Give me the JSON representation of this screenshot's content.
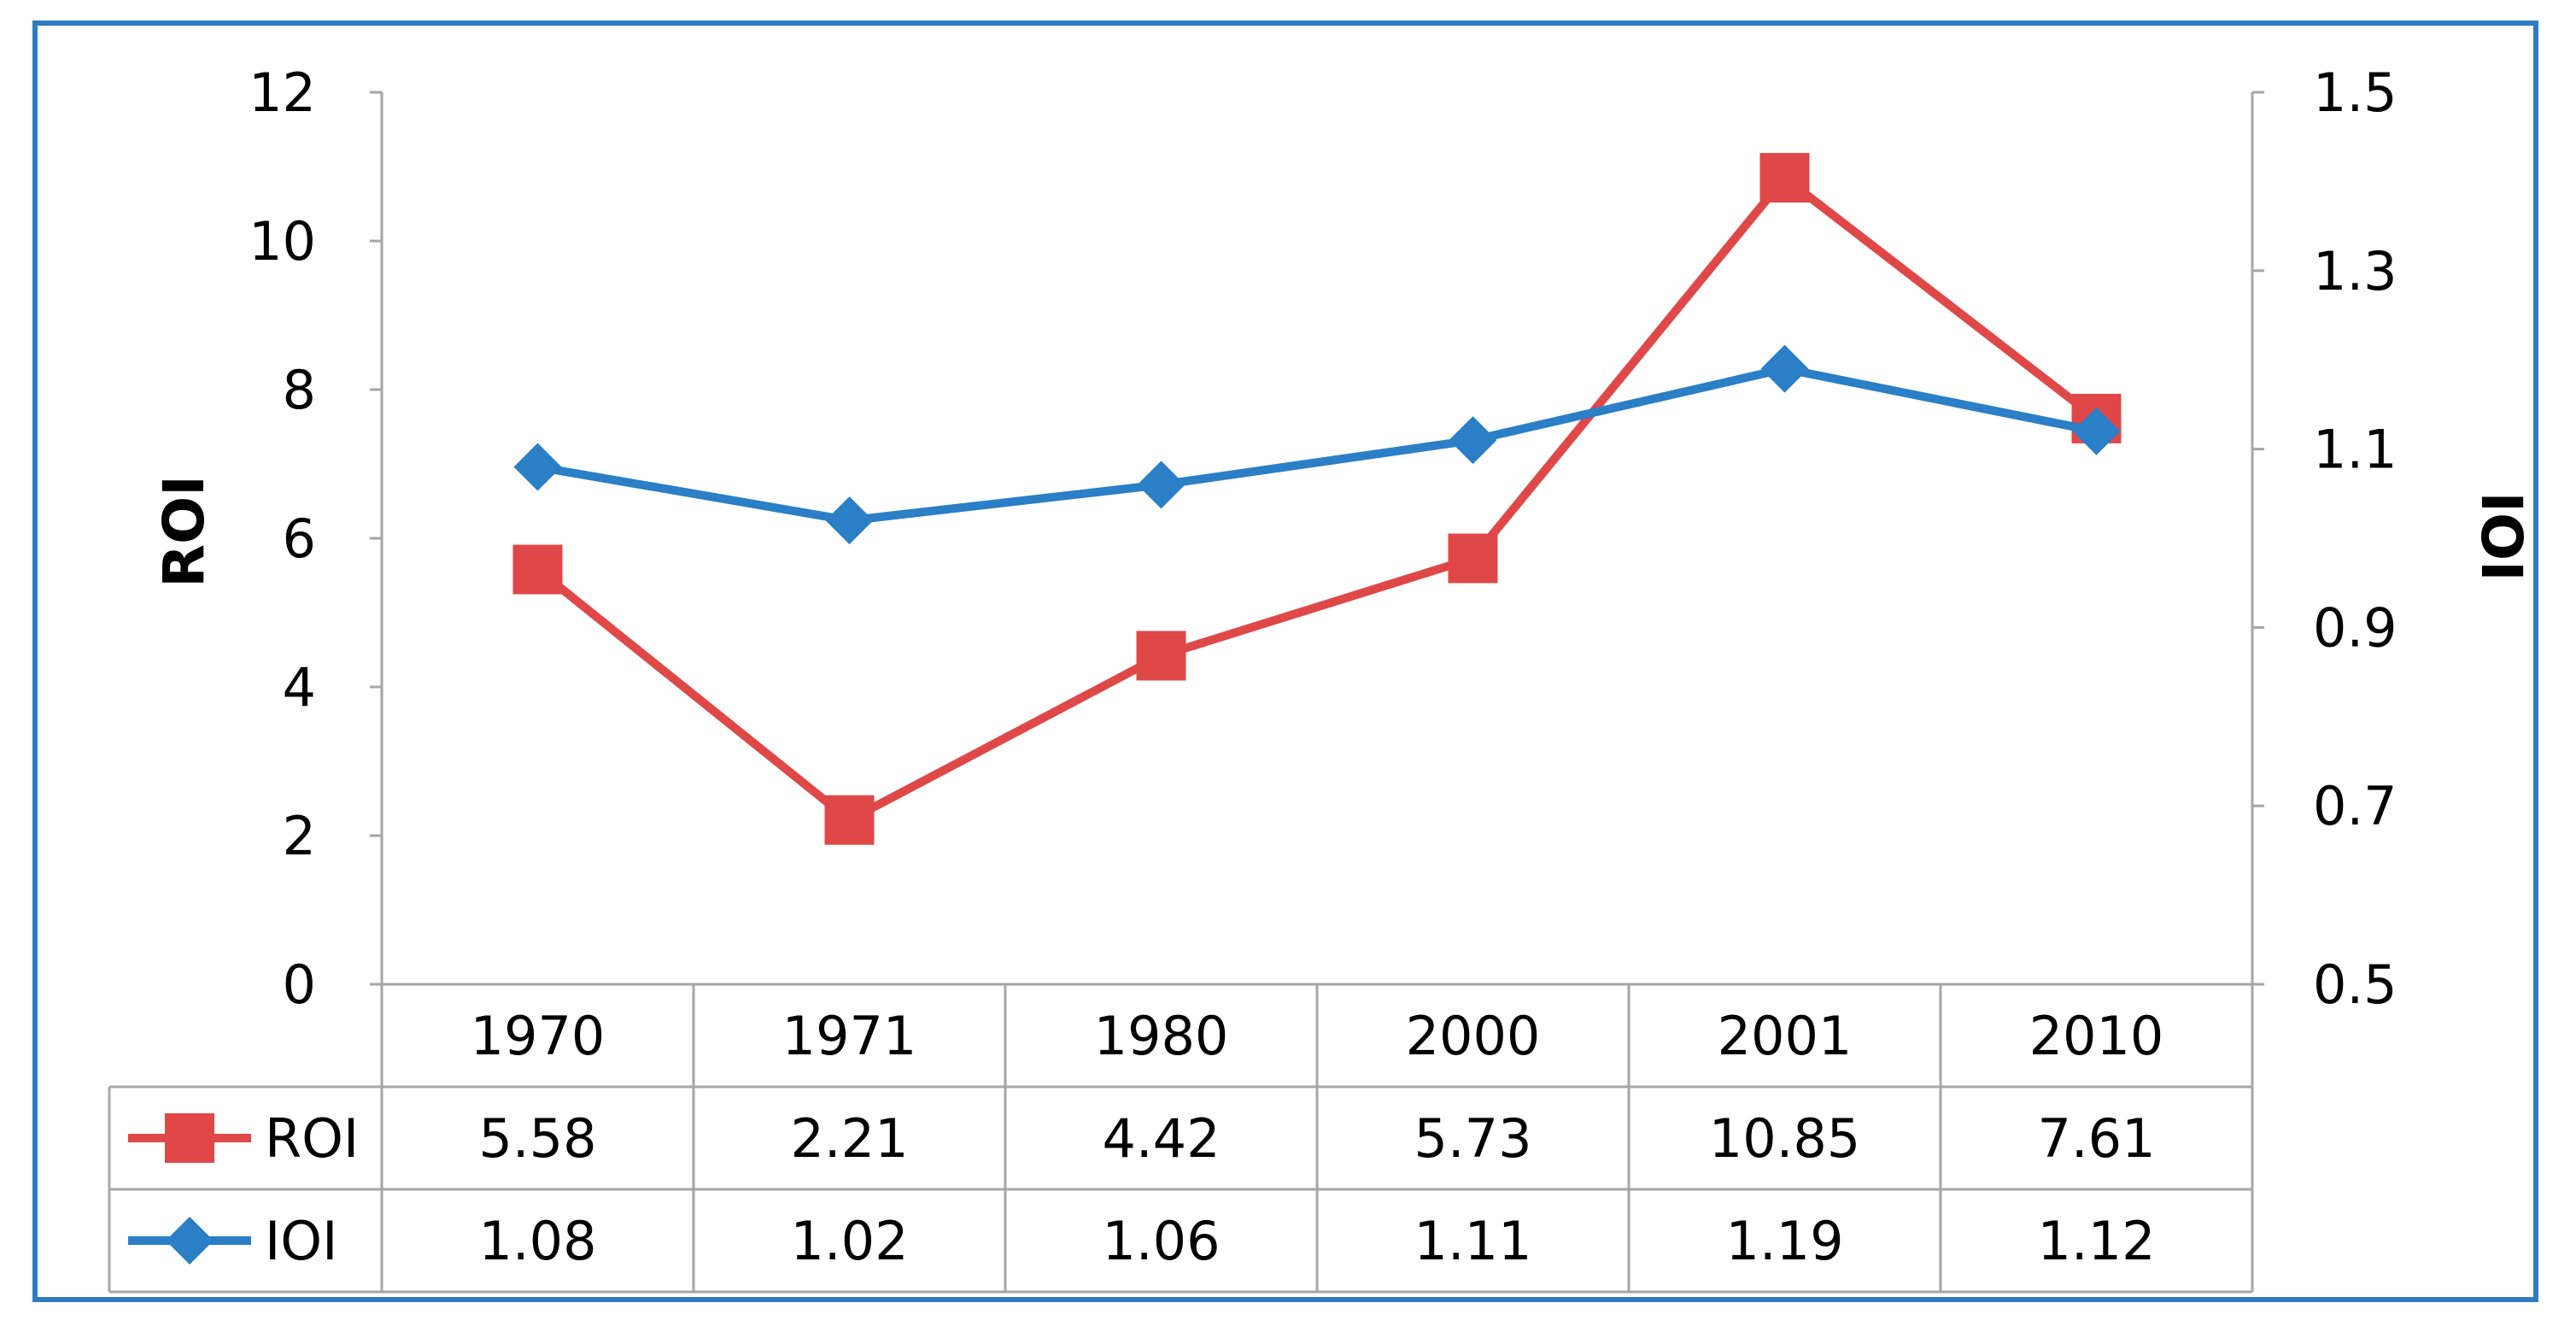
{
  "chart_data": {
    "type": "line",
    "categories": [
      "1970",
      "1971",
      "1980",
      "2000",
      "2001",
      "2010"
    ],
    "series": [
      {
        "name": "ROI",
        "axis": "left",
        "values": [
          5.58,
          2.21,
          4.42,
          5.73,
          10.85,
          7.61
        ],
        "color": "#e04848",
        "marker": "square"
      },
      {
        "name": "IOI",
        "axis": "right",
        "values": [
          1.08,
          1.02,
          1.06,
          1.11,
          1.19,
          1.12
        ],
        "color": "#2a7fc6",
        "marker": "diamond"
      }
    ],
    "ylabel_left": "ROI",
    "ylabel_right": "IOI",
    "ylim_left": [
      0,
      12
    ],
    "ylim_right": [
      0.5,
      1.5
    ],
    "yticks_left": [
      "0",
      "2",
      "4",
      "6",
      "8",
      "10",
      "12"
    ],
    "yticks_right": [
      "0.5",
      "0.7",
      "0.9",
      "1.1",
      "1.3",
      "1.5"
    ],
    "grid": false,
    "legend": "data-table"
  }
}
